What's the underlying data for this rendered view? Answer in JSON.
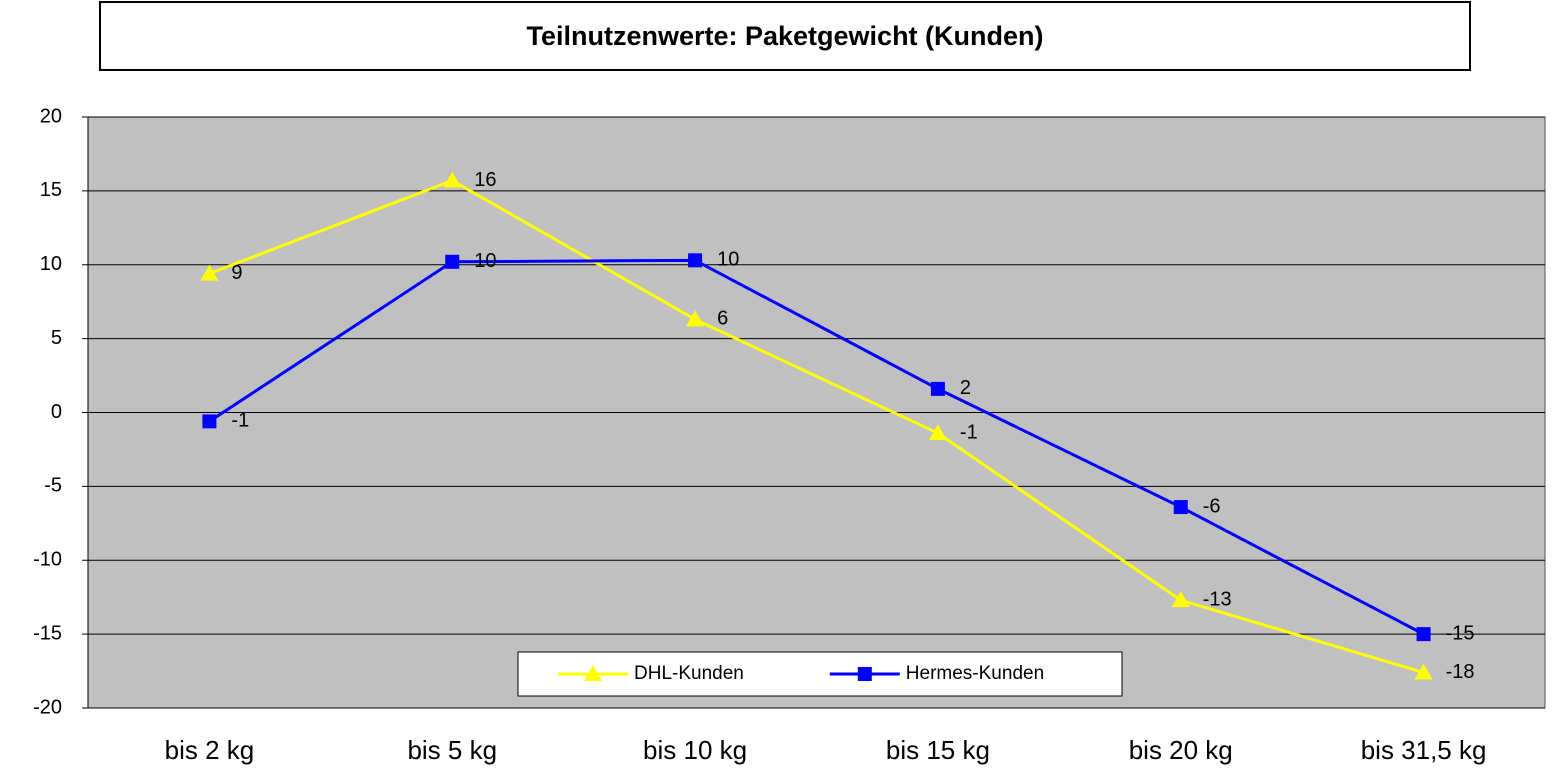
{
  "chart_data": {
    "type": "line",
    "title": "Teilnutzenwerte: Paketgewicht (Kunden)",
    "categories": [
      "bis 2 kg",
      "bis 5 kg",
      "bis 10 kg",
      "bis 15 kg",
      "bis 20 kg",
      "bis 31,5 kg"
    ],
    "series": [
      {
        "name": "DHL-Kunden",
        "color": "#ffff00",
        "marker": "triangle",
        "values": [
          9.4,
          15.7,
          6.3,
          -1.4,
          -12.7,
          -17.6
        ],
        "value_labels": [
          "9",
          "16",
          "6",
          "-1",
          "-13",
          "-18"
        ]
      },
      {
        "name": "Hermes-Kunden",
        "color": "#0000ff",
        "marker": "square",
        "values": [
          -0.6,
          10.2,
          10.3,
          1.6,
          -6.4,
          -15.0
        ],
        "value_labels": [
          "-1",
          "10",
          "10",
          "2",
          "-6",
          "-15"
        ]
      }
    ],
    "ylim": [
      -20,
      20
    ],
    "yticks": [
      -20,
      -15,
      -10,
      -5,
      0,
      5,
      10,
      15,
      20
    ],
    "grid": true,
    "legend": "bottom"
  }
}
